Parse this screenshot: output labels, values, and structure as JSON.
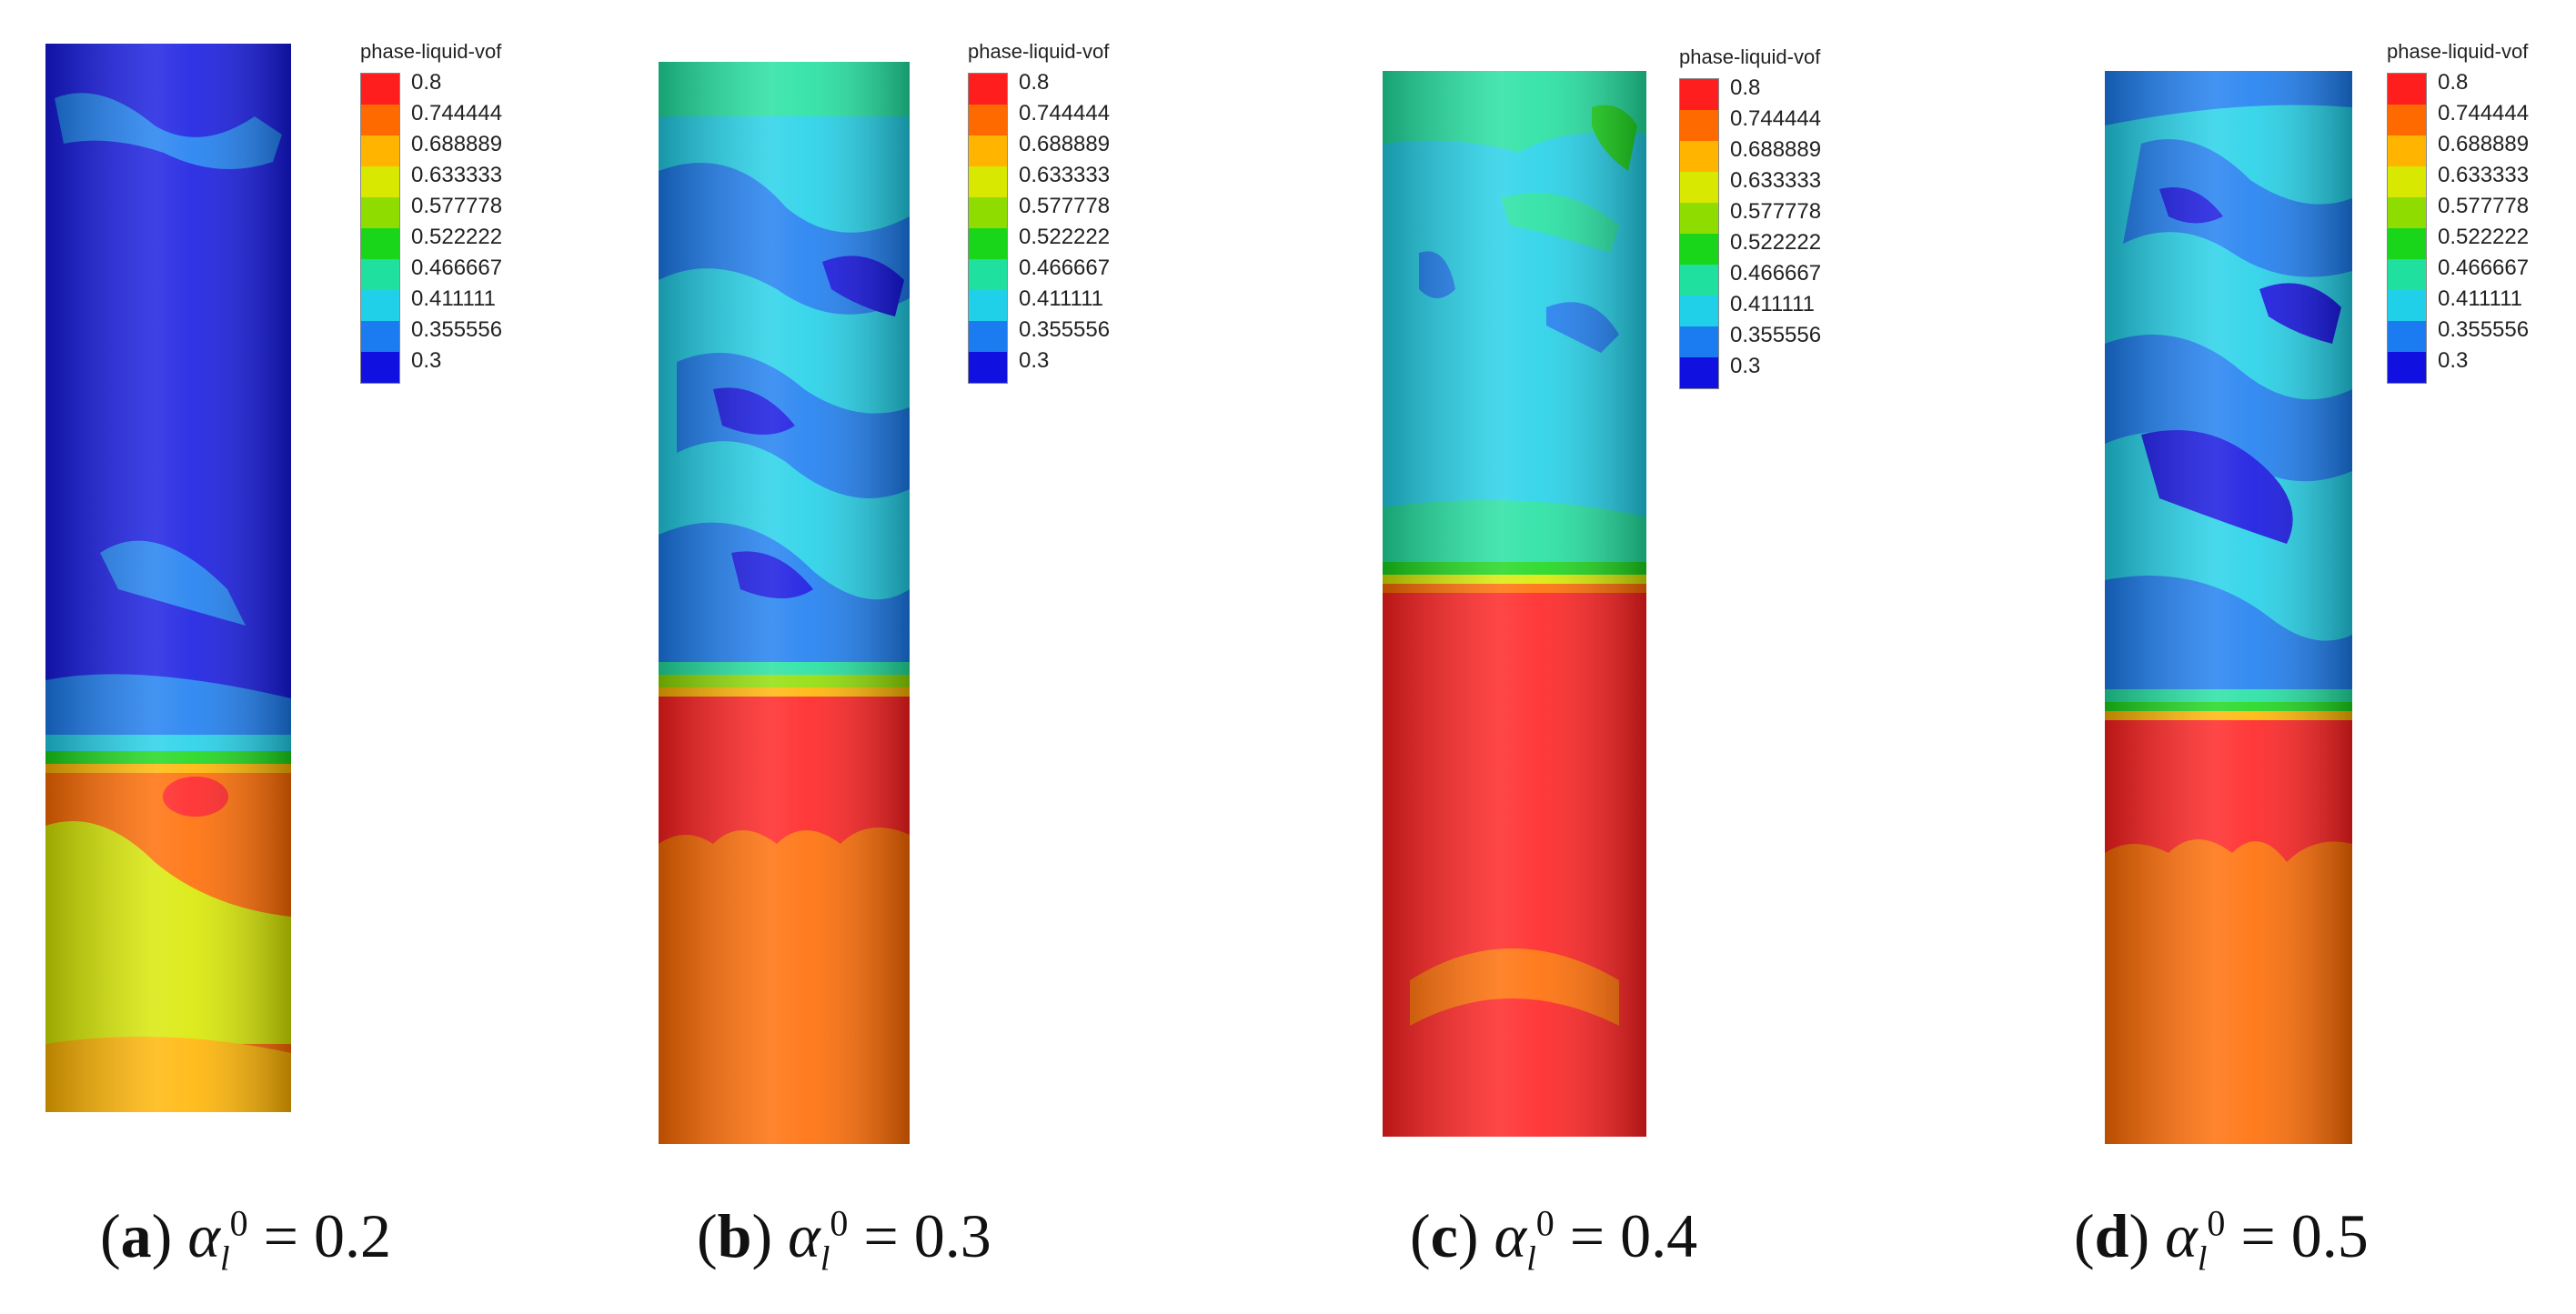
{
  "legend": {
    "title": "phase-liquid-vof",
    "labels": [
      "0.8",
      "0.744444",
      "0.688889",
      "0.633333",
      "0.577778",
      "0.522222",
      "0.466667",
      "0.411111",
      "0.355556",
      "0.3"
    ],
    "colors": [
      "#ff1e1e",
      "#ff6a00",
      "#ffb400",
      "#d8e800",
      "#8fdc00",
      "#1ad61a",
      "#20e0a0",
      "#20d0e8",
      "#1a7cf0",
      "#1010e0"
    ]
  },
  "panels": [
    {
      "letter": "a",
      "value": "0.2"
    },
    {
      "letter": "b",
      "value": "0.3"
    },
    {
      "letter": "c",
      "value": "0.4"
    },
    {
      "letter": "d",
      "value": "0.5"
    }
  ],
  "caption_symbol": "α",
  "caption_subscript": "l",
  "caption_superscript": "0",
  "caption_equals": "="
}
